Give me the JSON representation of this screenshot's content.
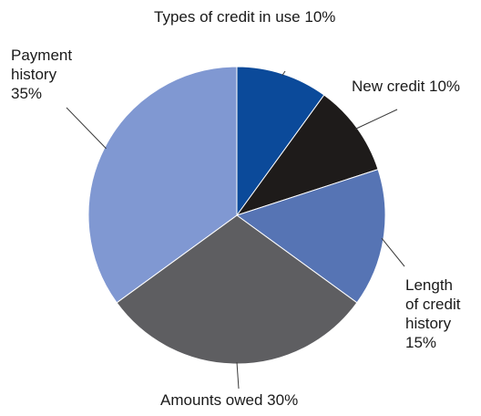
{
  "chart_data": {
    "type": "pie",
    "title": "",
    "start": "top (12 o'clock)",
    "direction": "clockwise",
    "slices": [
      {
        "name": "Types of credit in use",
        "value": 10,
        "color": "#0b4a9a",
        "label_lines": [
          "Types of credit in use 10%"
        ]
      },
      {
        "name": "New credit",
        "value": 10,
        "color": "#1e1b1a",
        "label_lines": [
          "New credit 10%"
        ]
      },
      {
        "name": "Length of credit history",
        "value": 15,
        "color": "#5674b4",
        "label_lines": [
          "Length",
          "of credit",
          "history",
          "15%"
        ]
      },
      {
        "name": "Amounts owed",
        "value": 30,
        "color": "#5e5e61",
        "label_lines": [
          "Amounts owed 30%"
        ]
      },
      {
        "name": "Payment history",
        "value": 35,
        "color": "#8098d2",
        "label_lines": [
          "Payment",
          "history",
          "35%"
        ]
      }
    ]
  }
}
